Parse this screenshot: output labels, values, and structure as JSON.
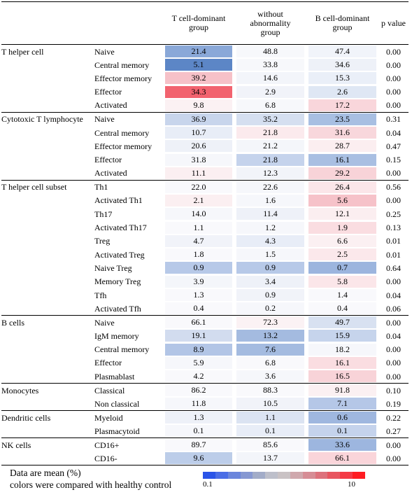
{
  "columns": [
    "",
    "",
    "T cell-dominant group",
    "without abnormality group",
    "B cell-dominant group",
    "p value"
  ],
  "groups": [
    {
      "name": "T helper cell",
      "rows": [
        {
          "label": "Naive",
          "t": "21.4",
          "w": "48.8",
          "b": "47.4",
          "p": "0.00",
          "tc": "#8aa8d8",
          "wc": "#f7f8fb",
          "bc": "#f1f4fa"
        },
        {
          "label": "Central memory",
          "t": "5.1",
          "w": "33.8",
          "b": "34.6",
          "p": "0.00",
          "tc": "#5c86c6",
          "wc": "#f7f8fb",
          "bc": "#eef1f8"
        },
        {
          "label": "Effector memory",
          "t": "39.2",
          "w": "14.6",
          "b": "15.3",
          "p": "0.00",
          "tc": "#f6c1c8",
          "wc": "#f3f5fa",
          "bc": "#eaeff8"
        },
        {
          "label": "Effector",
          "t": "34.3",
          "w": "2.9",
          "b": "2.6",
          "p": "0.00",
          "tc": "#f2636f",
          "wc": "#f1f3f9",
          "bc": "#dfe7f4"
        },
        {
          "label": "Activated",
          "t": "9.8",
          "w": "6.8",
          "b": "17.2",
          "p": "0.00",
          "tc": "#fbf1f3",
          "wc": "#f7f8fb",
          "bc": "#f9d6db"
        }
      ]
    },
    {
      "name": "Cytotoxic T lymphocyte",
      "rows": [
        {
          "label": "Naive",
          "t": "36.9",
          "w": "35.2",
          "b": "23.5",
          "p": "0.31",
          "tc": "#c8d5ec",
          "wc": "#d5dff0",
          "bc": "#a8bfe2"
        },
        {
          "label": "Central memory",
          "t": "10.7",
          "w": "21.8",
          "b": "31.6",
          "p": "0.04",
          "tc": "#e8edf7",
          "wc": "#fbeaed",
          "bc": "#f8d7dc"
        },
        {
          "label": "Effector memory",
          "t": "20.6",
          "w": "21.2",
          "b": "28.7",
          "p": "0.47",
          "tc": "#eef1f8",
          "wc": "#f4f6fa",
          "bc": "#fbeef0"
        },
        {
          "label": "Effector",
          "t": "31.8",
          "w": "21.8",
          "b": "16.1",
          "p": "0.15",
          "tc": "#f6f7fb",
          "wc": "#c5d3ec",
          "bc": "#a9bfe2"
        },
        {
          "label": "Activated",
          "t": "11.1",
          "w": "12.3",
          "b": "29.2",
          "p": "0.00",
          "tc": "#fbeff1",
          "wc": "#f2f4f9",
          "bc": "#f8d3d8"
        }
      ]
    },
    {
      "name": "T helper cell subset",
      "rows": [
        {
          "label": "Th1",
          "t": "22.0",
          "w": "22.6",
          "b": "26.4",
          "p": "0.56",
          "tc": "#f9f9fc",
          "wc": "#f6f7fb",
          "bc": "#fbe6e9"
        },
        {
          "label": "Activated Th1",
          "t": "2.1",
          "w": "1.6",
          "b": "5.6",
          "p": "0.00",
          "tc": "#fbeff1",
          "wc": "#f6f7fb",
          "bc": "#f6c2c9"
        },
        {
          "label": "Th17",
          "t": "14.0",
          "w": "11.4",
          "b": "12.1",
          "p": "0.25",
          "tc": "#f6f7fb",
          "wc": "#eef1f8",
          "bc": "#fbeef0"
        },
        {
          "label": "Activated Th17",
          "t": "1.1",
          "w": "1.2",
          "b": "1.9",
          "p": "0.13",
          "tc": "#f9f9fc",
          "wc": "#f6f7fb",
          "bc": "#fadde1"
        },
        {
          "label": "Treg",
          "t": "4.7",
          "w": "4.3",
          "b": "6.6",
          "p": "0.01",
          "tc": "#f1f3f9",
          "wc": "#e8edf7",
          "bc": "#fbf0f2"
        },
        {
          "label": "Activated Treg",
          "t": "1.8",
          "w": "1.5",
          "b": "2.5",
          "p": "0.01",
          "tc": "#f9f9fc",
          "wc": "#f6f7fb",
          "bc": "#fbe8eb"
        },
        {
          "label": "Naive Treg",
          "t": "0.9",
          "w": "0.9",
          "b": "0.7",
          "p": "0.64",
          "tc": "#b7c9e8",
          "wc": "#b7c9e8",
          "bc": "#9cb5de"
        },
        {
          "label": "Memory Treg",
          "t": "3.9",
          "w": "3.4",
          "b": "5.8",
          "p": "0.00",
          "tc": "#f4f6fa",
          "wc": "#eef1f8",
          "bc": "#fbe6e9"
        },
        {
          "label": "Tfh",
          "t": "1.3",
          "w": "0.9",
          "b": "1.4",
          "p": "0.04",
          "tc": "#f9f9fc",
          "wc": "#f1f3f9",
          "bc": "#f9f9fc"
        },
        {
          "label": "Activated Tfh",
          "t": "0.4",
          "w": "0.2",
          "b": "0.4",
          "p": "0.06",
          "tc": "#f9f9fc",
          "wc": "#f6f7fb",
          "bc": "#f9f9fc"
        }
      ]
    },
    {
      "name": "B cells",
      "rows": [
        {
          "label": "Naive",
          "t": "66.1",
          "w": "72.3",
          "b": "49.7",
          "p": "0.00",
          "tc": "#f9f9fc",
          "wc": "#fbf2f4",
          "bc": "#d8e1f1"
        },
        {
          "label": "IgM memory",
          "t": "19.1",
          "w": "13.2",
          "b": "15.9",
          "p": "0.04",
          "tc": "#d2dcef",
          "wc": "#a4bbe0",
          "bc": "#c6d4ec"
        },
        {
          "label": "Central memory",
          "t": "8.9",
          "w": "7.6",
          "b": "18.2",
          "p": "0.00",
          "tc": "#b2c5e6",
          "wc": "#a4bbe0",
          "bc": "#f6f7fb"
        },
        {
          "label": "Effector",
          "t": "5.9",
          "w": "6.8",
          "b": "16.1",
          "p": "0.00",
          "tc": "#f6f7fb",
          "wc": "#f9f9fc",
          "bc": "#fadde1"
        },
        {
          "label": "Plasmablast",
          "t": "4.2",
          "w": "3.6",
          "b": "16.5",
          "p": "0.00",
          "tc": "#f9f9fc",
          "wc": "#f6f7fb",
          "bc": "#f8d3d8"
        }
      ]
    },
    {
      "name": "Monocytes",
      "rows": [
        {
          "label": "Classical",
          "t": "86.2",
          "w": "88.3",
          "b": "91.8",
          "p": "0.10",
          "tc": "#f9f9fc",
          "wc": "#f9f9fc",
          "bc": "#fbf0f2"
        },
        {
          "label": "Non classical",
          "t": "11.8",
          "w": "10.5",
          "b": "7.1",
          "p": "0.19",
          "tc": "#f6f7fb",
          "wc": "#f1f3f9",
          "bc": "#b5c7e7"
        }
      ]
    },
    {
      "name": "Dendritic cells",
      "rows": [
        {
          "label": "Myeloid",
          "t": "1.3",
          "w": "1.1",
          "b": "0.6",
          "p": "0.22",
          "tc": "#eef1f8",
          "wc": "#dbe3f2",
          "bc": "#9fb7df"
        },
        {
          "label": "Plasmacytoid",
          "t": "0.1",
          "w": "0.1",
          "b": "0.1",
          "p": "0.27",
          "tc": "#f6f7fb",
          "wc": "#e8edf7",
          "bc": "#c5d3ec"
        }
      ]
    },
    {
      "name": "NK cells",
      "rows": [
        {
          "label": "CD16+",
          "t": "89.7",
          "w": "85.6",
          "b": "33.6",
          "p": "0.00",
          "tc": "#f9f9fc",
          "wc": "#f9f9fc",
          "bc": "#9db6df"
        },
        {
          "label": "CD16-",
          "t": "9.6",
          "w": "13.7",
          "b": "66.1",
          "p": "0.00",
          "tc": "#bccde9",
          "wc": "#f3f5fa",
          "bc": "#fad5da"
        }
      ]
    }
  ],
  "legend": {
    "line1": "Data are mean (%)",
    "line2": "colors were compared with healthy control",
    "min_label": "0.1",
    "max_label": "10",
    "scale_colors": [
      "#2a54e8",
      "#4a6de6",
      "#6b86dc",
      "#8698d2",
      "#a2acc8",
      "#bdbfca",
      "#c9c2c4",
      "#cfa8ad",
      "#d68d95",
      "#dd727c",
      "#e85660",
      "#f43a45",
      "#ff1c22"
    ]
  }
}
